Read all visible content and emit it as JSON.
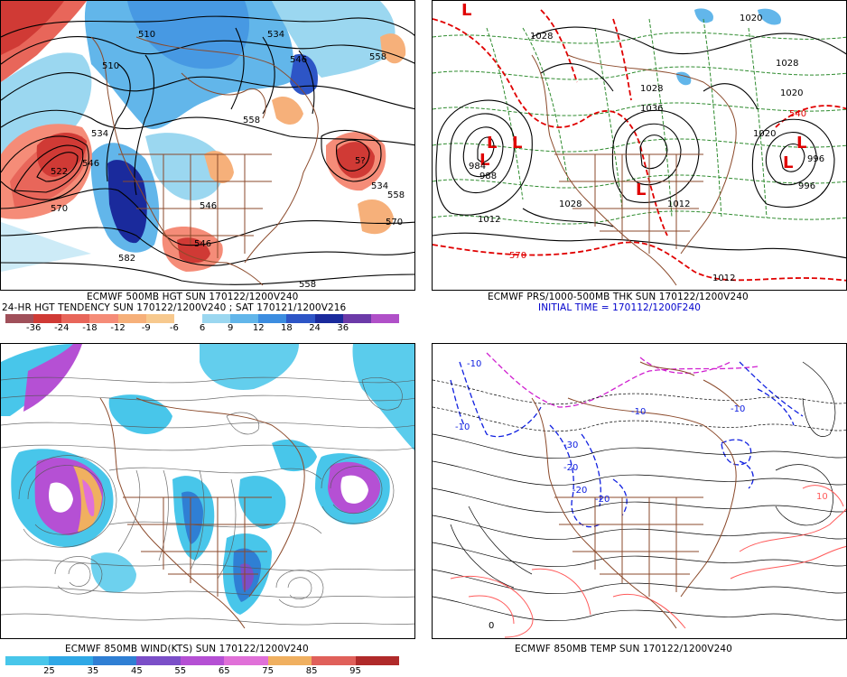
{
  "panels": {
    "p1": {
      "caption1": "ECMWF 500MB HGT SUN 170122/1200V240",
      "caption2": "24-HR HGT TENDENCY SUN 170122/1200V240 ; SAT 170121/1200V216",
      "legend_ticks": [
        "-36",
        "-24",
        "-18",
        "-12",
        "-9",
        "-6",
        "6",
        "9",
        "12",
        "18",
        "24",
        "36"
      ],
      "legend_colors": [
        "#a0505a",
        "#d03a35",
        "#e8665a",
        "#f58c78",
        "#f6b07a",
        "#f7c98e",
        "#ffffff",
        "#9bd7f0",
        "#62b6ea",
        "#3c8de0",
        "#2d55c6",
        "#1a2a9c",
        "#6c3aa8",
        "#b050c8"
      ],
      "contour_labels": [
        "510",
        "534",
        "546",
        "558",
        "510",
        "558",
        "534",
        "522",
        "570",
        "546",
        "546",
        "570",
        "558",
        "534",
        "570",
        "582",
        "558",
        "546"
      ]
    },
    "p2": {
      "caption1": "ECMWF PRS/1000-500MB THK SUN 170122/1200V240",
      "caption2": "INITIAL TIME = 170112/1200F240",
      "contour_labels": [
        "1028",
        "1020",
        "1028",
        "1036",
        "1028",
        "1020",
        "1012",
        "1012",
        "996",
        "988",
        "984",
        "996",
        "1012",
        "1028",
        "1020",
        "540",
        "570"
      ],
      "high_low_labels": [
        "L",
        "L",
        "L",
        "L",
        "L",
        "L",
        "L"
      ]
    },
    "p3": {
      "caption1": "ECMWF 850MB WIND(KTS) SUN 170122/1200V240",
      "legend_ticks": [
        "25",
        "35",
        "45",
        "55",
        "65",
        "75",
        "85",
        "95"
      ],
      "legend_colors": [
        "#48c6ea",
        "#2fa8e6",
        "#2f7fd4",
        "#7b4fc8",
        "#b550d4",
        "#e070d8",
        "#f0b060",
        "#e0605a",
        "#b02a2a"
      ]
    },
    "p4": {
      "caption1": "ECMWF 850MB TEMP SUN 170122/1200V240",
      "contour_labels": [
        "-10",
        "-10",
        "-20",
        "-10",
        "-20",
        "-30",
        "-20",
        "-10",
        "0",
        "10"
      ]
    }
  }
}
